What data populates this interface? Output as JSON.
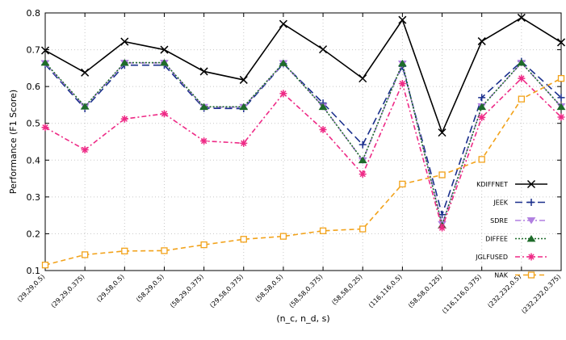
{
  "chart_data": {
    "type": "line",
    "xlabel": "(n_c, n_d, s)",
    "ylabel": "Performance (F1 Score)",
    "ylim": [
      0.1,
      0.8
    ],
    "yticks": [
      "0.1",
      "0.2",
      "0.3",
      "0.4",
      "0.5",
      "0.6",
      "0.7",
      "0.8"
    ],
    "grid": true,
    "legend_position": "lower-right",
    "categories": [
      "(29,29,0.5)",
      "(29,29,0.375)",
      "(29,58,0.5)",
      "(58,29,0.5)",
      "(58,29,0.375)",
      "(29,58,0.375)",
      "(58,58,0.5)",
      "(58,58,0.375)",
      "(58,58,0.25)",
      "(116,116,0.5)",
      "(58,58,0.125)",
      "(116,116,0.375)",
      "(232,232,0.5)",
      "(232,232,0.375)"
    ],
    "series": [
      {
        "name": "KDIFFNET",
        "color": "#000000",
        "dash": "",
        "marker": "x",
        "values": [
          0.698,
          0.638,
          0.722,
          0.7,
          0.641,
          0.618,
          0.77,
          0.701,
          0.622,
          0.781,
          0.475,
          0.723,
          0.787,
          0.72
        ]
      },
      {
        "name": "JEEK",
        "color": "#1a2f8c",
        "dash": "9,5",
        "marker": "plus",
        "values": [
          0.66,
          0.54,
          0.658,
          0.658,
          0.541,
          0.54,
          0.662,
          0.555,
          0.442,
          0.655,
          0.252,
          0.57,
          0.668,
          0.57
        ]
      },
      {
        "name": "SDRE",
        "color": "#b07fe0",
        "dash": "7,3,2,3",
        "marker": "tri-down",
        "values": [
          0.663,
          0.545,
          0.664,
          0.664,
          0.544,
          0.544,
          0.663,
          0.546,
          0.399,
          0.662,
          0.226,
          0.546,
          0.664,
          0.546
        ]
      },
      {
        "name": "DIFFEE",
        "color": "#1e6b2a",
        "dash": "2,2",
        "marker": "tri-up",
        "values": [
          0.665,
          0.546,
          0.665,
          0.665,
          0.545,
          0.545,
          0.664,
          0.545,
          0.4,
          0.663,
          0.223,
          0.545,
          0.665,
          0.545
        ]
      },
      {
        "name": "JGLFUSED",
        "color": "#ee2a86",
        "dash": "6,3,2,3",
        "marker": "star",
        "values": [
          0.489,
          0.428,
          0.512,
          0.526,
          0.452,
          0.446,
          0.581,
          0.483,
          0.362,
          0.608,
          0.216,
          0.516,
          0.622,
          0.517
        ]
      },
      {
        "name": "NAK",
        "color": "#f2a21a",
        "dash": "6,4",
        "marker": "square",
        "values": [
          0.115,
          0.143,
          0.153,
          0.154,
          0.17,
          0.185,
          0.193,
          0.208,
          0.213,
          0.335,
          0.36,
          0.402,
          0.566,
          0.622
        ]
      }
    ]
  }
}
